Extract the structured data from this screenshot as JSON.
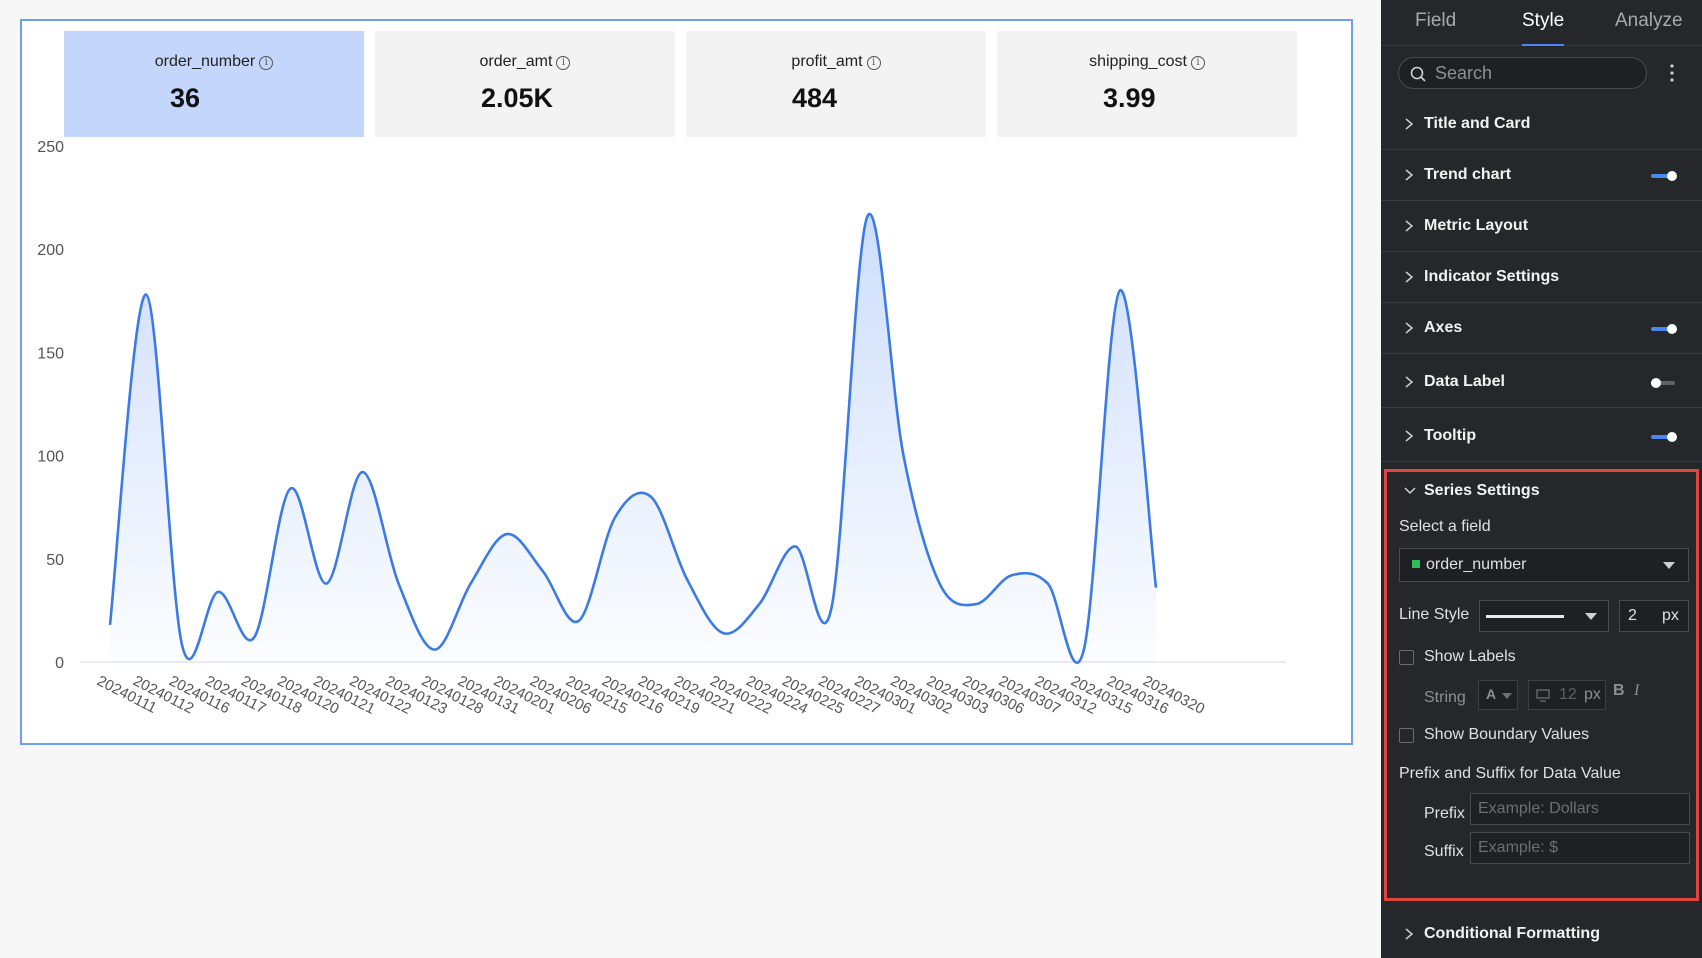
{
  "kpis": [
    {
      "name": "order_number",
      "value": "36",
      "active": true
    },
    {
      "name": "order_amt",
      "value": "2.05K",
      "active": false
    },
    {
      "name": "profit_amt",
      "value": "484",
      "active": false
    },
    {
      "name": "shipping_cost",
      "value": "3.99",
      "active": false
    }
  ],
  "kpi_info_glyph": "i",
  "chart_data": {
    "type": "area",
    "series": [
      {
        "name": "order_number",
        "values": [
          18,
          178,
          8,
          34,
          12,
          84,
          38,
          92,
          38,
          6,
          38,
          62,
          44,
          20,
          70,
          80,
          40,
          14,
          28,
          56,
          26,
          216,
          100,
          38,
          28,
          42,
          38,
          6,
          180,
          36
        ]
      }
    ],
    "categories": [
      "20240111",
      "20240112",
      "20240116",
      "20240117",
      "20240118",
      "20240120",
      "20240121",
      "20240122",
      "20240123",
      "20240128",
      "20240131",
      "20240201",
      "20240206",
      "20240215",
      "20240216",
      "20240219",
      "20240221",
      "20240222",
      "20240224",
      "20240225",
      "20240227",
      "20240301",
      "20240302",
      "20240303",
      "20240306",
      "20240307",
      "20240312",
      "20240315",
      "20240316",
      "20240320"
    ],
    "yticks": [
      0,
      50,
      100,
      150,
      200,
      250
    ],
    "ylim": [
      0,
      250
    ],
    "line_color": "#3c7ae6",
    "grid": false
  },
  "panel": {
    "tabs": [
      "Field",
      "Style",
      "Analyze"
    ],
    "active_tab": "Style",
    "search_placeholder": "Search",
    "sections": [
      {
        "label": "Title and Card",
        "toggle": null
      },
      {
        "label": "Trend chart",
        "toggle": "on"
      },
      {
        "label": "Metric Layout",
        "toggle": null
      },
      {
        "label": "Indicator Settings",
        "toggle": null
      },
      {
        "label": "Axes",
        "toggle": "on"
      },
      {
        "label": "Data Label",
        "toggle": "off"
      },
      {
        "label": "Tooltip",
        "toggle": "on"
      }
    ],
    "series_settings": {
      "title": "Series Settings",
      "select_field_label": "Select a field",
      "selected_field": "order_number",
      "field_color": "#2fbf5a",
      "line_style_label": "Line Style",
      "line_width": "2",
      "line_width_unit": "px",
      "show_labels": "Show Labels",
      "string_label": "String",
      "font_color_letter": "A",
      "font_size": "12",
      "font_size_unit": "px",
      "bold": "B",
      "italic": "I",
      "show_boundary": "Show Boundary Values",
      "prefix_suffix_title": "Prefix and Suffix for Data Value",
      "prefix_label": "Prefix",
      "prefix_placeholder": "Example: Dollars",
      "suffix_label": "Suffix",
      "suffix_placeholder": "Example: $"
    },
    "conditional_formatting": "Conditional Formatting"
  },
  "colors": {
    "accent": "#4c86f0",
    "highlight_border": "#e0443e",
    "kpi_active_bg": "#c4d6fb"
  }
}
